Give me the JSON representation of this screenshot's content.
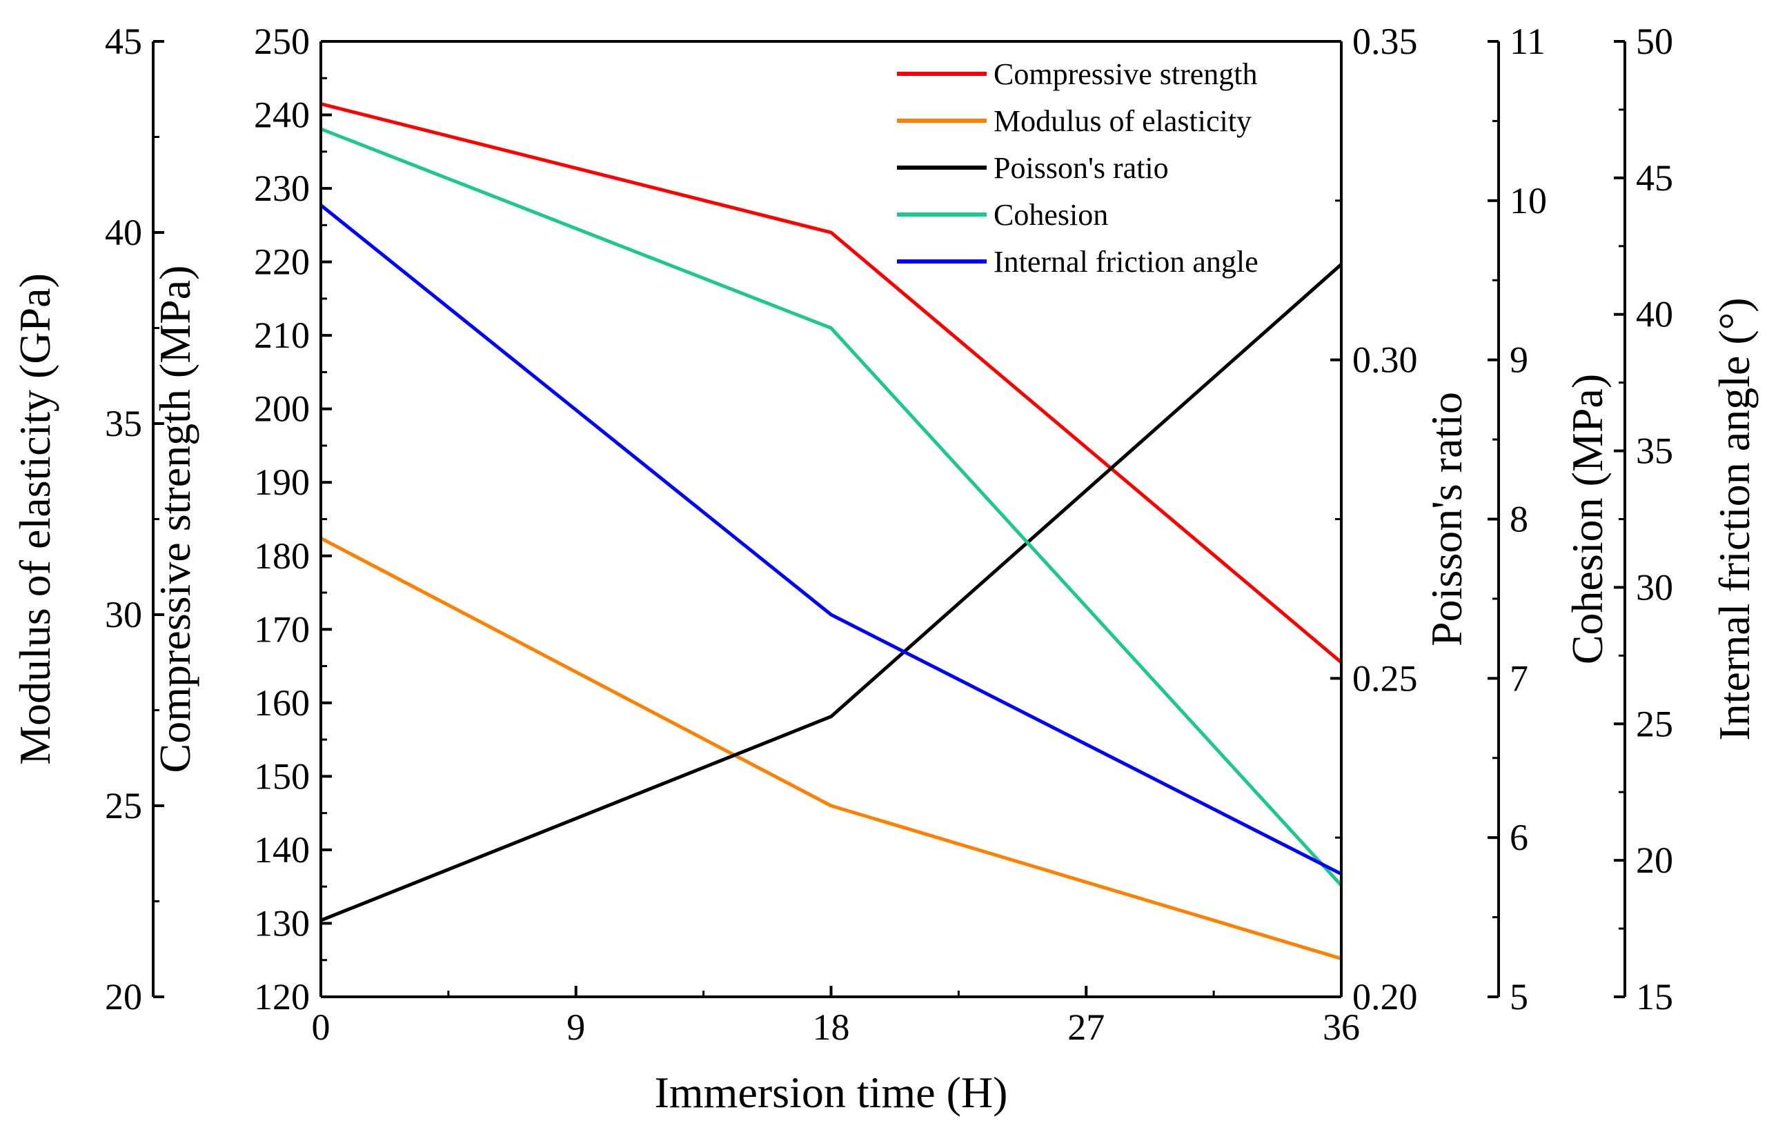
{
  "chart_data": {
    "type": "line",
    "xlabel": "Immersion time (H)",
    "x": [
      0,
      18,
      36
    ],
    "x_ticks": [
      "0",
      "9",
      "18",
      "27",
      "36"
    ],
    "xlim": [
      0,
      36
    ],
    "axes": [
      {
        "id": "modulus",
        "label": "Modulus of elasticity (GPa)",
        "side": "left-outer",
        "lim": [
          20,
          45
        ],
        "ticks": [
          "20",
          "25",
          "30",
          "35",
          "40",
          "45"
        ]
      },
      {
        "id": "compressive",
        "label": "Compressive strength (MPa)",
        "side": "left",
        "lim": [
          120,
          250
        ],
        "ticks": [
          "120",
          "130",
          "140",
          "150",
          "160",
          "170",
          "180",
          "190",
          "200",
          "210",
          "220",
          "230",
          "240",
          "250"
        ]
      },
      {
        "id": "poisson",
        "label": "Poisson's ratio",
        "side": "right",
        "lim": [
          0.2,
          0.35
        ],
        "ticks": [
          "0.20",
          "0.25",
          "0.30",
          "0.35"
        ]
      },
      {
        "id": "cohesion",
        "label": "Cohesion (MPa)",
        "side": "right-outer-1",
        "lim": [
          5,
          11
        ],
        "ticks": [
          "5",
          "6",
          "7",
          "8",
          "9",
          "10",
          "11"
        ]
      },
      {
        "id": "friction",
        "label": "Internal friction angle (°)",
        "side": "right-outer-2",
        "lim": [
          15,
          50
        ],
        "ticks": [
          "15",
          "20",
          "25",
          "30",
          "35",
          "40",
          "45",
          "50"
        ]
      }
    ],
    "series": [
      {
        "name": "Compressive strength",
        "axis": "compressive",
        "color": "#ff0000",
        "values": [
          241.5,
          224,
          165.5
        ]
      },
      {
        "name": "Modulus of elasticity",
        "axis": "modulus",
        "color": "#ff8000",
        "values": [
          32.0,
          25.0,
          21.0
        ]
      },
      {
        "name": "Poisson's ratio",
        "axis": "poisson",
        "color": "#000000",
        "values": [
          0.212,
          0.244,
          0.315
        ]
      },
      {
        "name": "Cohesion",
        "axis": "cohesion",
        "color": "#1ec88c",
        "values": [
          10.45,
          9.2,
          5.7
        ]
      },
      {
        "name": "Internal friction angle",
        "axis": "friction",
        "color": "#0000ff",
        "values": [
          44.0,
          29.0,
          19.5
        ]
      }
    ],
    "legend_position": "top-right"
  }
}
